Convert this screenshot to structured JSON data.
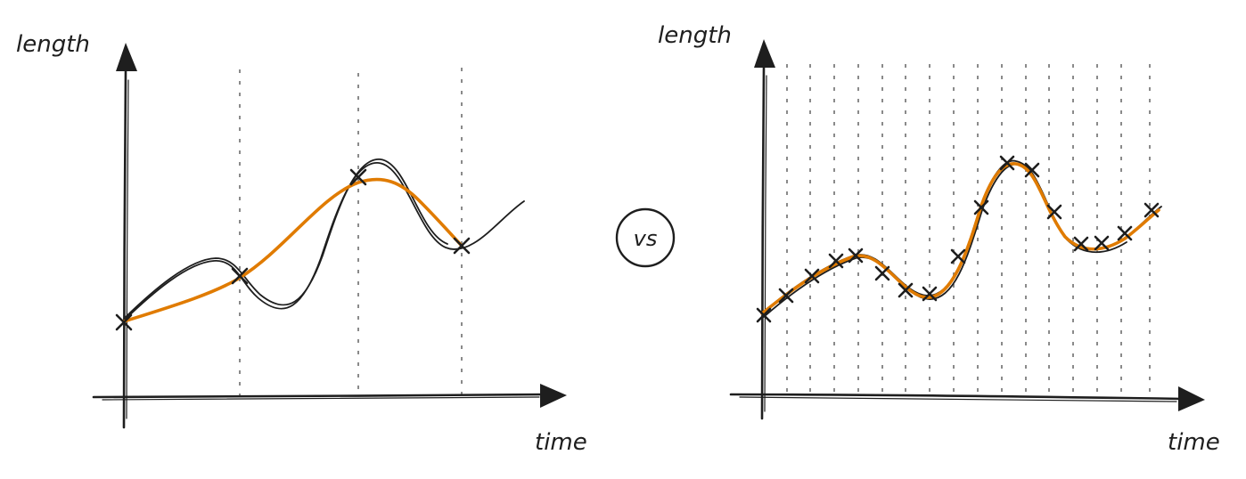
{
  "diagrams": [
    {
      "id": "left",
      "y_label": "length",
      "x_label": "time",
      "sample_count": 4
    },
    {
      "id": "right",
      "y_label": "length",
      "x_label": "time",
      "sample_count": 17
    }
  ],
  "separator": {
    "label": "vs"
  },
  "colors": {
    "ink": "#1e1e1e",
    "fit": "#e07b00",
    "grid": "#8a8a8a"
  }
}
